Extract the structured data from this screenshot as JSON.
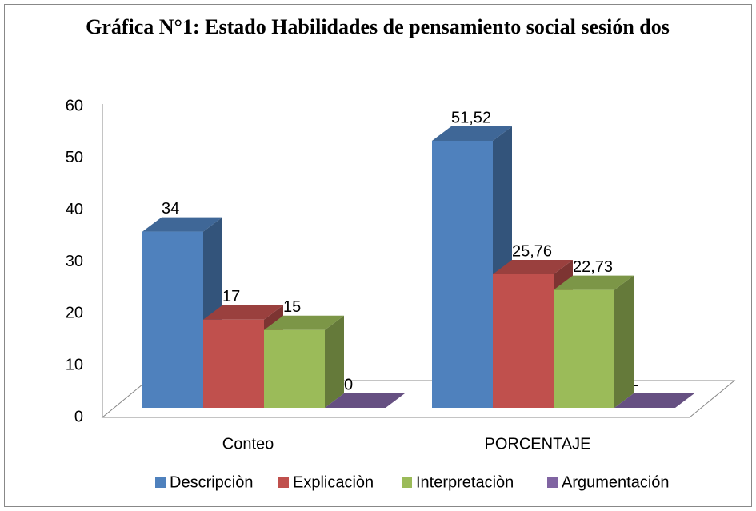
{
  "chart_data": {
    "type": "bar",
    "title": "Gráfica N°1: Estado Habilidades de pensamiento social  sesión dos",
    "categories": [
      "Conteo",
      "PORCENTAJE"
    ],
    "series": [
      {
        "name": "Descripciòn",
        "color": "#4f81bd",
        "values": [
          34,
          51.52
        ],
        "value_labels": [
          "34",
          "51,52"
        ]
      },
      {
        "name": "Explicaciòn",
        "color": "#c0504d",
        "values": [
          17,
          25.76
        ],
        "value_labels": [
          "17",
          "25,76"
        ]
      },
      {
        "name": "Interpretaciòn",
        "color": "#9bbb59",
        "values": [
          15,
          22.73
        ],
        "value_labels": [
          "15",
          "22,73"
        ]
      },
      {
        "name": "Argumentación",
        "color": "#8064a2",
        "values": [
          0,
          0
        ],
        "value_labels": [
          "0",
          "-"
        ]
      }
    ],
    "ylim": [
      0,
      60
    ],
    "yticks": [
      0,
      10,
      20,
      30,
      40,
      50,
      60
    ],
    "legend": "bottom"
  }
}
